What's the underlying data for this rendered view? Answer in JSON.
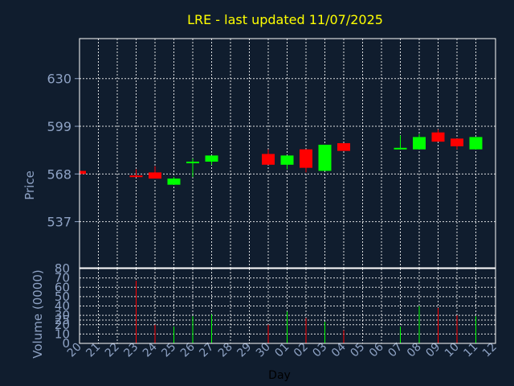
{
  "title": "LRE - last updated 11/07/2025",
  "colors": {
    "background": "#101d2e",
    "up": "#00ff00",
    "down": "#ff0000",
    "grid": "#ffffff",
    "label": "#8ea2c4",
    "title": "#ffff00"
  },
  "chart_data": {
    "type": "candlestick",
    "title": "LRE - last updated 11/07/2025",
    "ylabel": "Price",
    "xlabel": "Day",
    "grid": true,
    "price_axis": {
      "ylim": [
        507,
        656
      ],
      "ticks": [
        537,
        568,
        599,
        630
      ]
    },
    "volume_axis": {
      "ylabel": "Volume (0000)",
      "ylim": [
        0,
        80
      ],
      "ticks": [
        0,
        10,
        20,
        25,
        30,
        40,
        50,
        60,
        70,
        80
      ]
    },
    "categories": [
      "20",
      "21",
      "22",
      "23",
      "24",
      "25",
      "26",
      "27",
      "28",
      "29",
      "30",
      "01",
      "02",
      "03",
      "04",
      "05",
      "06",
      "07",
      "08",
      "09",
      "10",
      "11",
      "12"
    ],
    "candles": [
      {
        "day": "20",
        "open": 570,
        "close": 568,
        "high": 570,
        "low": 568,
        "volume": 0
      },
      {
        "day": "23",
        "open": 567,
        "close": 566,
        "high": 571,
        "low": 566,
        "volume": 67
      },
      {
        "day": "24",
        "open": 569,
        "close": 565,
        "high": 573,
        "low": 565,
        "volume": 20
      },
      {
        "day": "25",
        "open": 561,
        "close": 565,
        "high": 566,
        "low": 561,
        "volume": 18
      },
      {
        "day": "26",
        "open": 575,
        "close": 576,
        "high": 578,
        "low": 566,
        "volume": 29
      },
      {
        "day": "27",
        "open": 576,
        "close": 580,
        "high": 580,
        "low": 574,
        "volume": 31
      },
      {
        "day": "30",
        "open": 581,
        "close": 574,
        "high": 584,
        "low": 574,
        "volume": 20
      },
      {
        "day": "01",
        "open": 574,
        "close": 580,
        "high": 580,
        "low": 571,
        "volume": 34
      },
      {
        "day": "02",
        "open": 584,
        "close": 572,
        "high": 584,
        "low": 569,
        "volume": 27
      },
      {
        "day": "03",
        "open": 570,
        "close": 587,
        "high": 587,
        "low": 570,
        "volume": 23
      },
      {
        "day": "04",
        "open": 588,
        "close": 583,
        "high": 588,
        "low": 583,
        "volume": 14
      },
      {
        "day": "07",
        "open": 584,
        "close": 585,
        "high": 593,
        "low": 584,
        "volume": 18
      },
      {
        "day": "08",
        "open": 584,
        "close": 592,
        "high": 594,
        "low": 584,
        "volume": 40
      },
      {
        "day": "09",
        "open": 595,
        "close": 589,
        "high": 597,
        "low": 589,
        "volume": 38
      },
      {
        "day": "10",
        "open": 591,
        "close": 586,
        "high": 591,
        "low": 584,
        "volume": 30
      },
      {
        "day": "11",
        "open": 584,
        "close": 592,
        "high": 592,
        "low": 584,
        "volume": 29
      }
    ]
  }
}
